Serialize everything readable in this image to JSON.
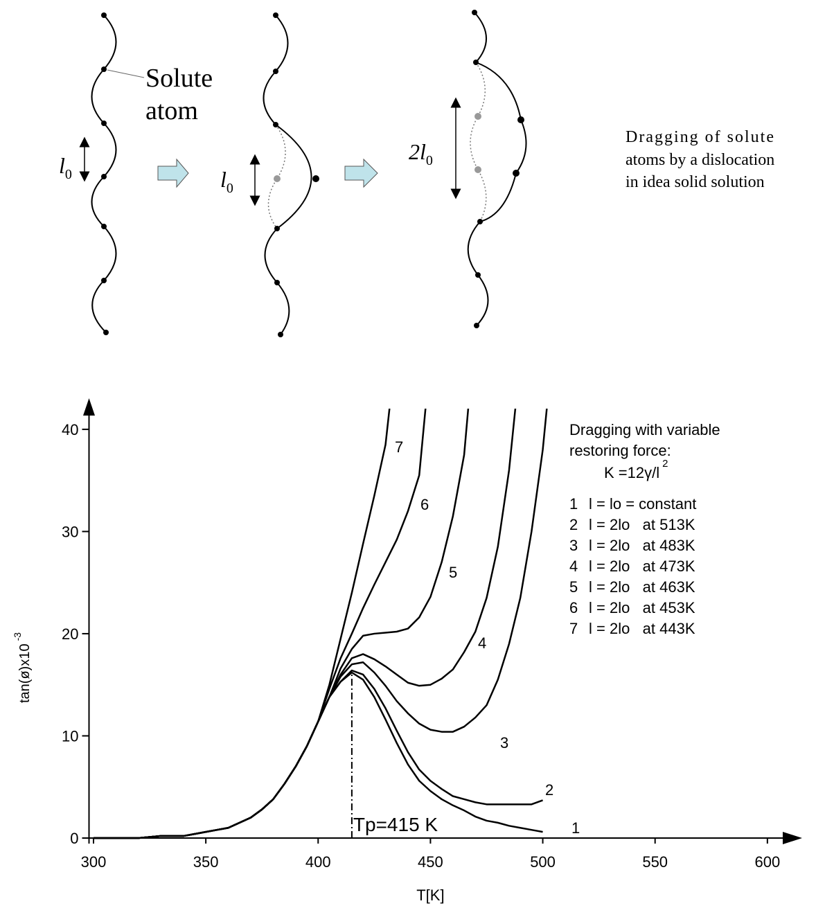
{
  "diagram": {
    "solute_label": [
      "Solute",
      "atom"
    ],
    "l0": {
      "base": "l",
      "sub": "0"
    },
    "l0_second": {
      "base": "l",
      "sub": "0"
    },
    "two_l0": {
      "base": "2l",
      "sub": "0"
    },
    "caption": [
      "Dragging of solute",
      "atoms by a dislocation",
      "in idea solid solution"
    ]
  },
  "chart_data": {
    "type": "line",
    "xlabel": "T[K]",
    "ylabel": "tan(ø)x10",
    "ylabel_exponent": "-3",
    "xlim": [
      298,
      613
    ],
    "ylim": [
      0,
      42.5
    ],
    "xticks": [
      300,
      350,
      400,
      450,
      500,
      550,
      600
    ],
    "yticks": [
      0,
      10,
      20,
      30,
      40
    ],
    "color": "#000000",
    "legend_title": [
      "Dragging with variable",
      "restoring force:"
    ],
    "legend_formula": {
      "text": "K =12γ/l",
      "sup": "2"
    },
    "annotation": {
      "text": "Tp=415 K",
      "x": 415,
      "y": 16.2
    },
    "series": [
      {
        "name": "1",
        "description": "l = lo = constant",
        "x": [
          300,
          310,
          320,
          330,
          340,
          345,
          350,
          355,
          360,
          365,
          370,
          375,
          380,
          385,
          390,
          395,
          400,
          405,
          410,
          415,
          420,
          425,
          430,
          435,
          440,
          445,
          450,
          455,
          460,
          465,
          470,
          475,
          480,
          485,
          490,
          495,
          500
        ],
        "values": [
          0,
          0,
          0,
          0.2,
          0.2,
          0.4,
          0.6,
          0.8,
          1.0,
          1.5,
          2.0,
          2.8,
          3.8,
          5.3,
          7.0,
          9.0,
          11.4,
          13.8,
          15.3,
          16.2,
          15.5,
          13.8,
          11.6,
          9.3,
          7.2,
          5.6,
          4.6,
          3.8,
          3.2,
          2.7,
          2.1,
          1.7,
          1.5,
          1.2,
          1.0,
          0.8,
          0.6
        ]
      },
      {
        "name": "2",
        "description": "l = 2lo   at 513K",
        "x": [
          300,
          310,
          320,
          330,
          340,
          345,
          350,
          355,
          360,
          365,
          370,
          375,
          380,
          385,
          390,
          395,
          400,
          405,
          410,
          415,
          420,
          425,
          430,
          435,
          440,
          445,
          450,
          455,
          460,
          465,
          470,
          475,
          480,
          485,
          490,
          495,
          500
        ],
        "values": [
          0,
          0,
          0,
          0.2,
          0.2,
          0.4,
          0.6,
          0.8,
          1.0,
          1.5,
          2.0,
          2.8,
          3.8,
          5.3,
          7.0,
          9.0,
          11.4,
          13.8,
          15.3,
          16.4,
          16.0,
          14.6,
          12.7,
          10.5,
          8.4,
          6.7,
          5.6,
          4.8,
          4.1,
          3.8,
          3.5,
          3.3,
          3.3,
          3.3,
          3.3,
          3.3,
          3.7
        ]
      },
      {
        "name": "3",
        "description": "l = 2lo   at 483K",
        "x": [
          300,
          310,
          320,
          330,
          340,
          345,
          350,
          355,
          360,
          365,
          370,
          375,
          380,
          385,
          390,
          395,
          400,
          405,
          410,
          415,
          420,
          425,
          430,
          435,
          440,
          445,
          450,
          455,
          460,
          465,
          470,
          475,
          480,
          485,
          490,
          495,
          500,
          502
        ],
        "values": [
          0,
          0,
          0,
          0.2,
          0.2,
          0.4,
          0.6,
          0.8,
          1.0,
          1.5,
          2.0,
          2.8,
          3.8,
          5.3,
          7.0,
          9.0,
          11.4,
          13.8,
          15.8,
          17.0,
          17.2,
          16.2,
          14.9,
          13.4,
          12.2,
          11.2,
          10.6,
          10.4,
          10.4,
          10.9,
          11.8,
          13.0,
          15.5,
          19.0,
          23.5,
          30.0,
          38.0,
          42.5
        ]
      },
      {
        "name": "4",
        "description": "l = 2lo   at 473K",
        "x": [
          300,
          310,
          320,
          330,
          340,
          345,
          350,
          355,
          360,
          365,
          370,
          375,
          380,
          385,
          390,
          395,
          400,
          405,
          410,
          415,
          420,
          425,
          430,
          435,
          440,
          445,
          450,
          455,
          460,
          465,
          470,
          475,
          480,
          485,
          488
        ],
        "values": [
          0,
          0,
          0,
          0.2,
          0.2,
          0.4,
          0.6,
          0.8,
          1.0,
          1.5,
          2.0,
          2.8,
          3.8,
          5.3,
          7.0,
          9.0,
          11.4,
          13.8,
          16.0,
          17.6,
          18.0,
          17.5,
          16.8,
          16.0,
          15.2,
          14.9,
          15.0,
          15.6,
          16.5,
          18.2,
          20.2,
          23.5,
          28.5,
          36.0,
          42.5
        ]
      },
      {
        "name": "5",
        "description": "l = 2lo   at 463K",
        "x": [
          300,
          310,
          320,
          330,
          340,
          345,
          350,
          355,
          360,
          365,
          370,
          375,
          380,
          385,
          390,
          395,
          400,
          405,
          410,
          415,
          420,
          425,
          430,
          435,
          440,
          445,
          450,
          455,
          460,
          465,
          467
        ],
        "values": [
          0,
          0,
          0,
          0.2,
          0.2,
          0.4,
          0.6,
          0.8,
          1.0,
          1.5,
          2.0,
          2.8,
          3.8,
          5.3,
          7.0,
          9.0,
          11.4,
          13.8,
          16.6,
          18.5,
          19.8,
          20.0,
          20.1,
          20.2,
          20.5,
          21.6,
          23.6,
          27.0,
          31.5,
          37.5,
          42.5
        ]
      },
      {
        "name": "6",
        "description": "l = 2lo   at 453K",
        "x": [
          300,
          310,
          320,
          330,
          340,
          345,
          350,
          355,
          360,
          365,
          370,
          375,
          380,
          385,
          390,
          395,
          400,
          405,
          410,
          415,
          420,
          425,
          430,
          435,
          440,
          445,
          448
        ],
        "values": [
          0,
          0,
          0,
          0.2,
          0.2,
          0.4,
          0.6,
          0.8,
          1.0,
          1.5,
          2.0,
          2.8,
          3.8,
          5.3,
          7.0,
          9.0,
          11.4,
          14.6,
          17.6,
          20.0,
          22.5,
          24.8,
          27.0,
          29.2,
          32.0,
          35.5,
          42.5
        ]
      },
      {
        "name": "7",
        "description": "l = 2lo   at 443K",
        "x": [
          300,
          310,
          320,
          330,
          340,
          345,
          350,
          355,
          360,
          365,
          370,
          375,
          380,
          385,
          390,
          395,
          400,
          405,
          410,
          415,
          420,
          425,
          430,
          432
        ],
        "values": [
          0,
          0,
          0,
          0.2,
          0.2,
          0.4,
          0.6,
          0.8,
          1.0,
          1.5,
          2.0,
          2.8,
          3.8,
          5.3,
          7.0,
          9.0,
          11.4,
          15.0,
          19.5,
          24.0,
          28.8,
          33.5,
          38.5,
          42.5
        ]
      }
    ]
  }
}
